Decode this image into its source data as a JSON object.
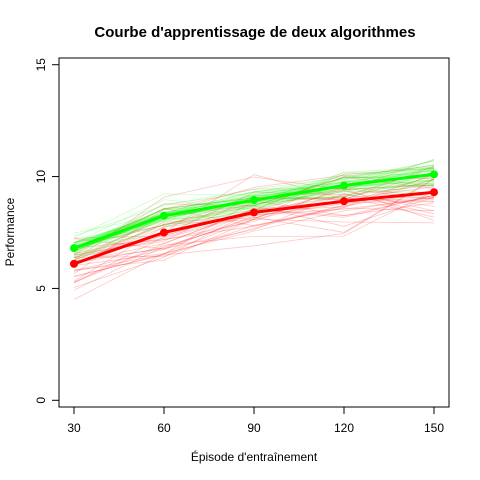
{
  "chart_data": {
    "type": "line",
    "title": "Courbe d'apprentissage de deux algorithmes",
    "xlabel": "Épisode d'entraînement",
    "ylabel": "Performance",
    "x": [
      30,
      60,
      90,
      120,
      150
    ],
    "x_ticks": [
      "30",
      "60",
      "90",
      "120",
      "150"
    ],
    "y_ticks": [
      "0",
      "5",
      "10",
      "15"
    ],
    "xlim": [
      25,
      155
    ],
    "ylim": [
      -0.3,
      15.3
    ],
    "grid": false,
    "legend": "none",
    "series": [
      {
        "color": "#ff0000",
        "values": [
          6.1,
          7.5,
          8.4,
          8.9,
          9.3
        ],
        "runs_spread": [
          0.8,
          0.9,
          0.9,
          0.85,
          0.9
        ]
      },
      {
        "color": "#00ff00",
        "values": [
          6.8,
          8.25,
          8.95,
          9.6,
          10.1
        ],
        "runs_spread": [
          0.3,
          0.35,
          0.35,
          0.35,
          0.4
        ]
      }
    ],
    "runs_per_series": 40
  }
}
